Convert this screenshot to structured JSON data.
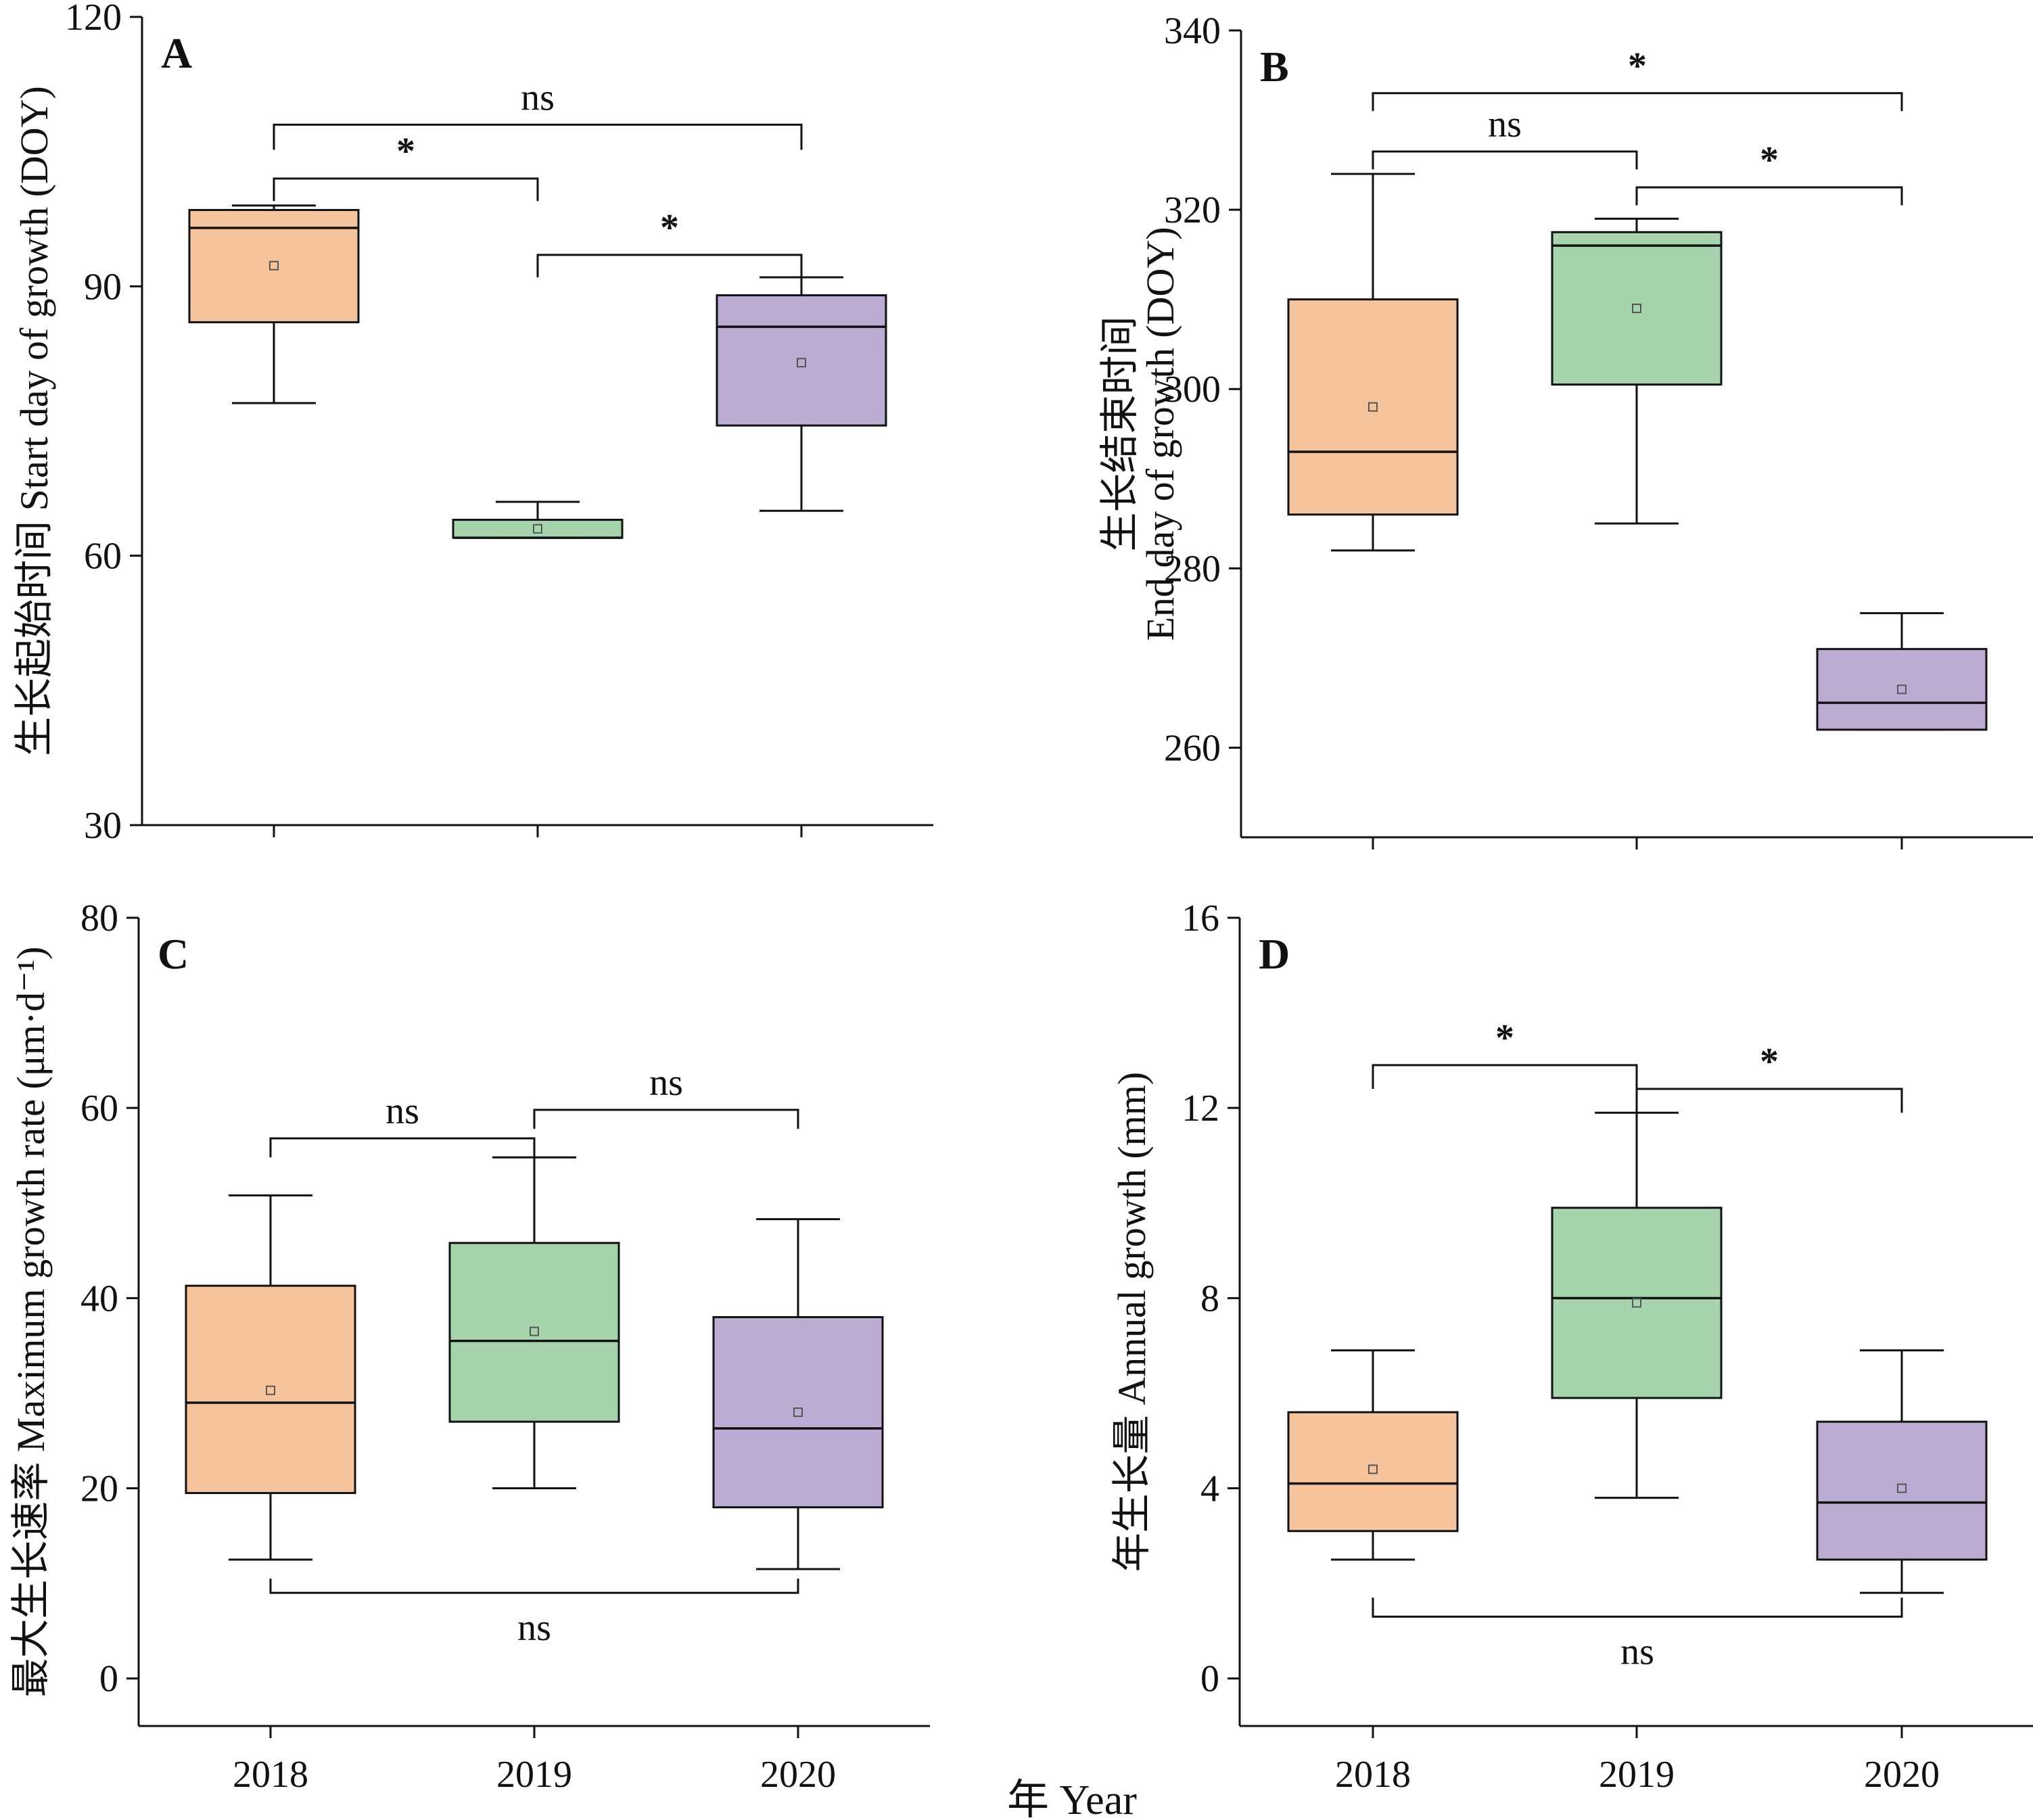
{
  "x_axis_title": "年 Year",
  "colors": {
    "2018": "#f5c49c",
    "2019": "#a6d5ad",
    "2020": "#bcabd3"
  },
  "chart_data": [
    {
      "type": "box",
      "panel": "A",
      "ylabel": "生长起始时间 Start day of growth (DOY)",
      "ylim": [
        30,
        120
      ],
      "yticks": [
        30,
        60,
        90,
        120
      ],
      "ytick_labels": [
        "30",
        "60",
        "90",
        "120"
      ],
      "categories": [
        "2018",
        "2019",
        "2020"
      ],
      "boxes": [
        {
          "min": 77,
          "q1": 86,
          "median": 96.5,
          "q3": 98.5,
          "max": 99,
          "mean": 92.3
        },
        {
          "min": 62,
          "q1": 62,
          "median": 62,
          "q3": 64,
          "max": 66,
          "mean": 63
        },
        {
          "min": 65,
          "q1": 74.5,
          "median": 85.5,
          "q3": 89,
          "max": 91,
          "mean": 81.5
        }
      ],
      "brackets": [
        {
          "from": 0,
          "to": 2,
          "level": 108,
          "drop": 2.8,
          "label": "ns"
        },
        {
          "from": 0,
          "to": 1,
          "level": 102,
          "drop": 2.5,
          "label": "*"
        },
        {
          "from": 1,
          "to": 2,
          "level": 93.5,
          "drop": 2.5,
          "label": "*"
        }
      ]
    },
    {
      "type": "box",
      "panel": "B",
      "ylabel_lines": [
        "生长结束时间",
        "End day of growth (DOY)"
      ],
      "ylim": [
        250,
        340
      ],
      "yticks": [
        260,
        280,
        300,
        320,
        340
      ],
      "ytick_labels": [
        "260",
        "280",
        "300",
        "320",
        "340"
      ],
      "categories": [
        "2018",
        "2019",
        "2020"
      ],
      "boxes": [
        {
          "min": 282,
          "q1": 286,
          "median": 293,
          "q3": 310,
          "max": 324,
          "mean": 298
        },
        {
          "min": 285,
          "q1": 300.5,
          "median": 316,
          "q3": 317.5,
          "max": 319,
          "mean": 309
        },
        {
          "min": 262,
          "q1": 262,
          "median": 265,
          "q3": 271,
          "max": 275,
          "mean": 266.5
        }
      ],
      "brackets": [
        {
          "from": 0,
          "to": 2,
          "level": 333,
          "drop": 2,
          "label": "*"
        },
        {
          "from": 0,
          "to": 1,
          "level": 326.5,
          "drop": 2,
          "label": "ns"
        },
        {
          "from": 1,
          "to": 2,
          "level": 322.5,
          "drop": 2,
          "label": "*"
        }
      ]
    },
    {
      "type": "box",
      "panel": "C",
      "ylabel": "最大生长速率 Maximum growth rate (μm·d⁻¹)",
      "ylim": [
        -5,
        80
      ],
      "yticks": [
        0,
        20,
        40,
        60,
        80
      ],
      "ytick_labels": [
        "0",
        "20",
        "40",
        "60",
        "80"
      ],
      "categories": [
        "2018",
        "2019",
        "2020"
      ],
      "boxes": [
        {
          "min": 12.5,
          "q1": 19.5,
          "median": 29,
          "q3": 41.3,
          "max": 50.8,
          "mean": 30.3
        },
        {
          "min": 20,
          "q1": 27,
          "median": 35.5,
          "q3": 45.8,
          "max": 54.8,
          "mean": 36.5
        },
        {
          "min": 11.5,
          "q1": 18,
          "median": 26.3,
          "q3": 38,
          "max": 48.3,
          "mean": 28
        }
      ],
      "brackets": [
        {
          "from": 0,
          "to": 1,
          "level": 56.8,
          "drop": 2,
          "label": "ns"
        },
        {
          "from": 1,
          "to": 2,
          "level": 59.8,
          "drop": 2,
          "label": "ns"
        },
        {
          "from": 0,
          "to": 2,
          "level": 9,
          "drop": -1.5,
          "label": "ns"
        }
      ]
    },
    {
      "type": "box",
      "panel": "D",
      "ylabel": "年生长量 Annual growth (mm)",
      "ylim": [
        -1,
        16
      ],
      "yticks": [
        0,
        4,
        8,
        12,
        16
      ],
      "ytick_labels": [
        "0",
        "4",
        "8",
        "12",
        "16"
      ],
      "categories": [
        "2018",
        "2019",
        "2020"
      ],
      "boxes": [
        {
          "min": 2.5,
          "q1": 3.1,
          "median": 4.1,
          "q3": 5.6,
          "max": 6.9,
          "mean": 4.4
        },
        {
          "min": 3.8,
          "q1": 5.9,
          "median": 8,
          "q3": 9.9,
          "max": 11.9,
          "mean": 7.9
        },
        {
          "min": 1.8,
          "q1": 2.5,
          "median": 3.7,
          "q3": 5.4,
          "max": 6.9,
          "mean": 4
        }
      ],
      "brackets": [
        {
          "from": 0,
          "to": 1,
          "level": 12.9,
          "drop": 0.5,
          "label": "*"
        },
        {
          "from": 1,
          "to": 2,
          "level": 12.4,
          "drop": 0.5,
          "label": "*"
        },
        {
          "from": 0,
          "to": 2,
          "level": 1.3,
          "drop": -0.4,
          "label": "ns"
        }
      ]
    }
  ]
}
